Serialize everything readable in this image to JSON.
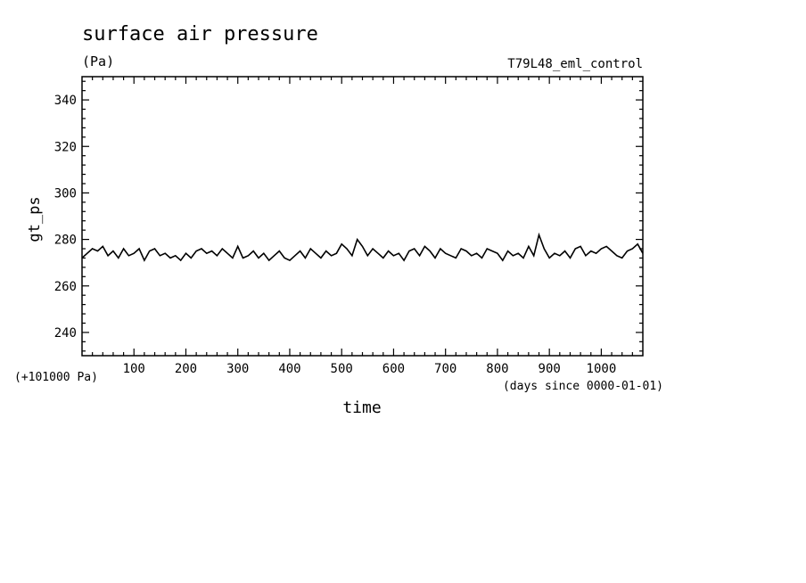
{
  "chart_data": {
    "type": "line",
    "title": "surface air pressure",
    "units": "(Pa)",
    "run_label": "T79L48_eml_control",
    "xlabel": "time",
    "x_units": "(days since 0000-01-01)",
    "ylabel": "gt_ps",
    "y_offset_label": "(+101000 Pa)",
    "xlim": [
      0,
      1080
    ],
    "ylim": [
      230,
      350
    ],
    "x_ticks": [
      100,
      200,
      300,
      400,
      500,
      600,
      700,
      800,
      900,
      1000
    ],
    "y_ticks": [
      240,
      260,
      280,
      300,
      320,
      340
    ],
    "x": [
      0,
      10,
      20,
      30,
      40,
      50,
      60,
      70,
      80,
      90,
      100,
      110,
      120,
      130,
      140,
      150,
      160,
      170,
      180,
      190,
      200,
      210,
      220,
      230,
      240,
      250,
      260,
      270,
      280,
      290,
      300,
      310,
      320,
      330,
      340,
      350,
      360,
      370,
      380,
      390,
      400,
      410,
      420,
      430,
      440,
      450,
      460,
      470,
      480,
      490,
      500,
      510,
      520,
      530,
      540,
      550,
      560,
      570,
      580,
      590,
      600,
      610,
      620,
      630,
      640,
      650,
      660,
      670,
      680,
      690,
      700,
      710,
      720,
      730,
      740,
      750,
      760,
      770,
      780,
      790,
      800,
      810,
      820,
      830,
      840,
      850,
      860,
      870,
      880,
      890,
      900,
      910,
      920,
      930,
      940,
      950,
      960,
      970,
      980,
      990,
      1000,
      1010,
      1020,
      1030,
      1040,
      1050,
      1060,
      1070,
      1080
    ],
    "series": [
      {
        "values": [
          272,
          274,
          276,
          275,
          277,
          273,
          275,
          272,
          276,
          273,
          274,
          276,
          271,
          275,
          276,
          273,
          274,
          272,
          273,
          271,
          274,
          272,
          275,
          276,
          274,
          275,
          273,
          276,
          274,
          272,
          277,
          272,
          273,
          275,
          272,
          274,
          271,
          273,
          275,
          272,
          271,
          273,
          275,
          272,
          276,
          274,
          272,
          275,
          273,
          274,
          278,
          276,
          273,
          280,
          277,
          273,
          276,
          274,
          272,
          275,
          273,
          274,
          271,
          275,
          276,
          273,
          277,
          275,
          272,
          276,
          274,
          273,
          272,
          276,
          275,
          273,
          274,
          272,
          276,
          275,
          274,
          271,
          275,
          273,
          274,
          272,
          277,
          273,
          282,
          276,
          272,
          274,
          273,
          275,
          272,
          276,
          277,
          273,
          275,
          274,
          276,
          277,
          275,
          273,
          272,
          275,
          276,
          278,
          274
        ]
      }
    ],
    "line_color": "#000000",
    "grid": false,
    "legend": "none"
  }
}
